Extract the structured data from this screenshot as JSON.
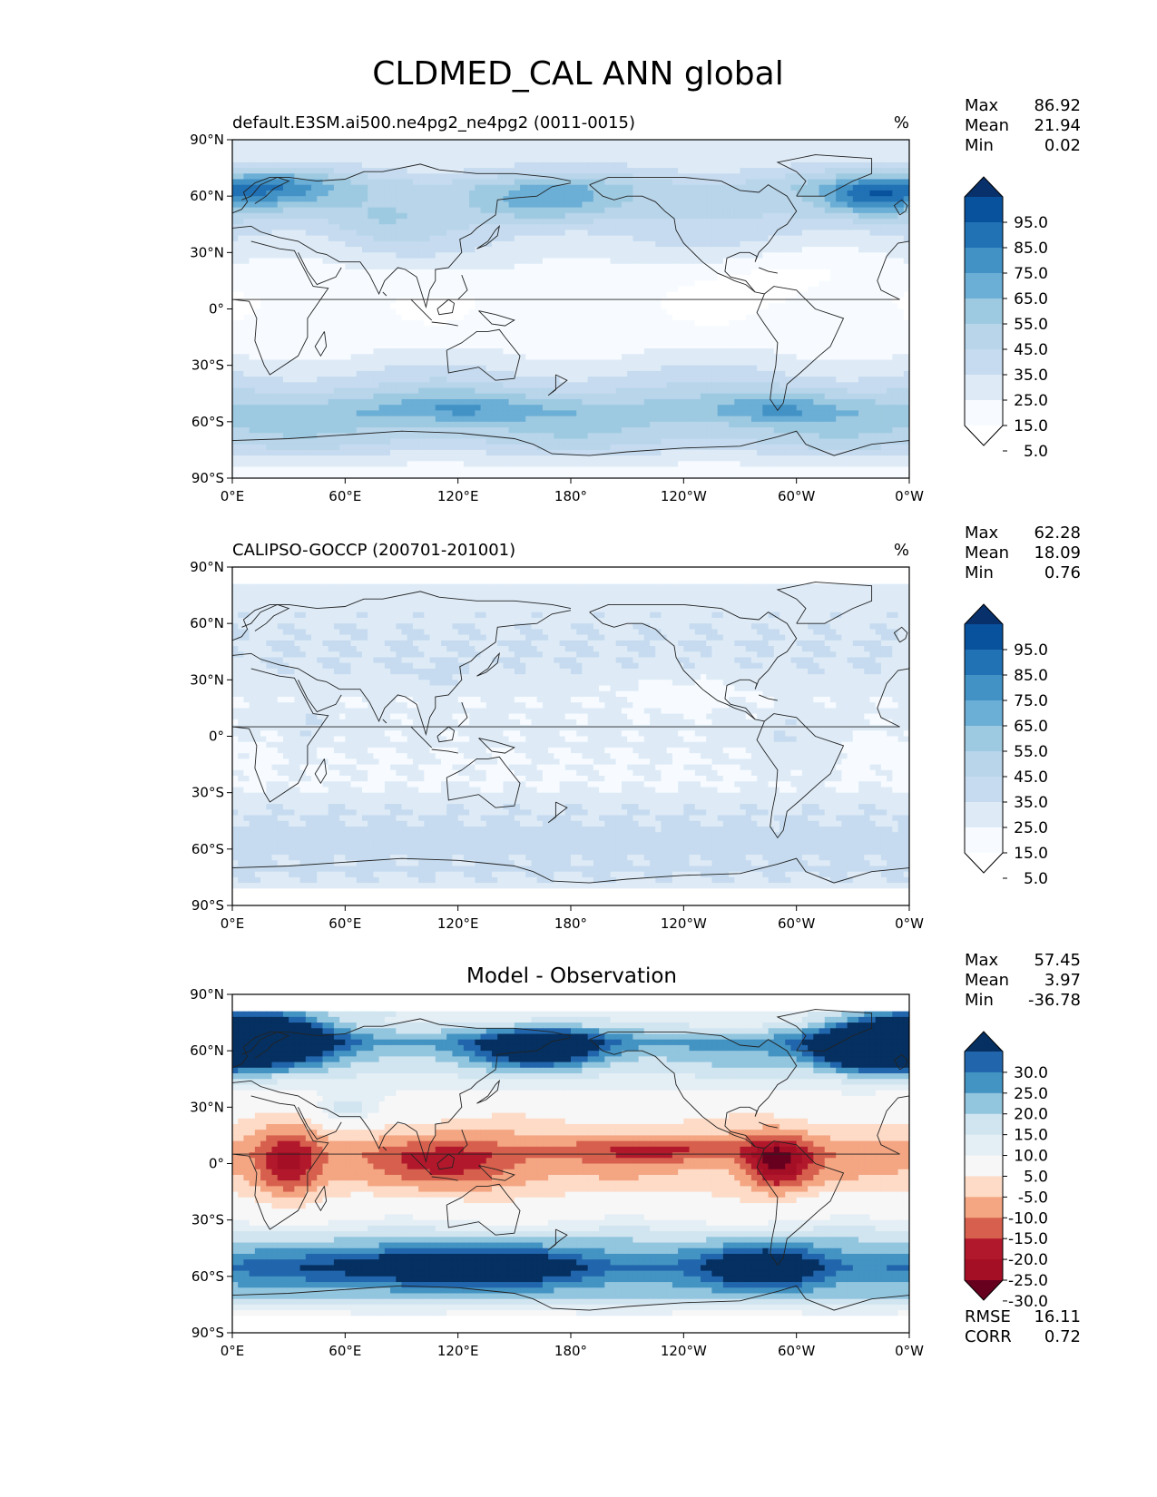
{
  "figure": {
    "title": "CLDMED_CAL ANN global"
  },
  "panels": [
    {
      "id": "test",
      "title_left": "default.E3SM.ai500.ne4pg2_ne4pg2 (0011-0015)",
      "title_center": "",
      "units": "%",
      "stats": [
        {
          "label": "Max",
          "value": "86.92"
        },
        {
          "label": "Mean",
          "value": "21.94"
        },
        {
          "label": "Min",
          "value": "0.02"
        }
      ],
      "extra_stats": [],
      "colorbar": {
        "labels": [
          "95.0",
          "85.0",
          "75.0",
          "65.0",
          "55.0",
          "45.0",
          "35.0",
          "25.0",
          "15.0",
          "5.0"
        ],
        "colors": [
          "#08306b",
          "#08519c",
          "#2171b5",
          "#4292c6",
          "#6baed6",
          "#9ecae1",
          "#b8d5ea",
          "#c6dbef",
          "#deebf7",
          "#f7fbff",
          "#ffffff"
        ]
      }
    },
    {
      "id": "reference",
      "title_left": "CALIPSO-GOCCP (200701-201001)",
      "title_center": "",
      "units": "%",
      "stats": [
        {
          "label": "Max",
          "value": "62.28"
        },
        {
          "label": "Mean",
          "value": "18.09"
        },
        {
          "label": "Min",
          "value": "0.76"
        }
      ],
      "extra_stats": [],
      "colorbar": {
        "labels": [
          "95.0",
          "85.0",
          "75.0",
          "65.0",
          "55.0",
          "45.0",
          "35.0",
          "25.0",
          "15.0",
          "5.0"
        ],
        "colors": [
          "#08306b",
          "#08519c",
          "#2171b5",
          "#4292c6",
          "#6baed6",
          "#9ecae1",
          "#b8d5ea",
          "#c6dbef",
          "#deebf7",
          "#f7fbff",
          "#ffffff"
        ]
      }
    },
    {
      "id": "difference",
      "title_left": "",
      "title_center": "Model - Observation",
      "units": "",
      "stats": [
        {
          "label": "Max",
          "value": "57.45"
        },
        {
          "label": "Mean",
          "value": "3.97"
        },
        {
          "label": "Min",
          "value": "-36.78"
        }
      ],
      "extra_stats": [
        {
          "label": "RMSE",
          "value": "16.11"
        },
        {
          "label": "CORR",
          "value": "0.72"
        }
      ],
      "colorbar": {
        "labels": [
          "30.0",
          "25.0",
          "20.0",
          "15.0",
          "10.0",
          "5.0",
          "-5.0",
          "-10.0",
          "-15.0",
          "-20.0",
          "-25.0",
          "-30.0"
        ],
        "colors": [
          "#053061",
          "#2166ac",
          "#4393c3",
          "#92c5de",
          "#d1e5f0",
          "#e4eef5",
          "#f7f7f7",
          "#fddbc7",
          "#f4a582",
          "#d6604d",
          "#b2182b",
          "#a50f26",
          "#67001f"
        ]
      }
    }
  ],
  "axes": {
    "x_ticks": [
      "0°E",
      "60°E",
      "120°E",
      "180°",
      "120°W",
      "60°W",
      "0°W"
    ],
    "y_ticks": [
      "90°N",
      "60°N",
      "30°N",
      "0°",
      "30°S",
      "60°S",
      "90°S"
    ]
  },
  "chart_data": [
    {
      "type": "heatmap",
      "projection": "plate-carree",
      "title": "default.E3SM.ai500.ne4pg2_ne4pg2 (0011-0015)",
      "units": "%",
      "xlim": [
        0,
        360
      ],
      "ylim": [
        -90,
        90
      ],
      "levels": [
        5,
        15,
        25,
        35,
        45,
        55,
        65,
        75,
        85,
        95
      ],
      "stats": {
        "max": 86.92,
        "mean": 21.94,
        "min": 0.02
      },
      "lat": [
        80,
        65,
        50,
        35,
        20,
        5,
        -10,
        -25,
        -40,
        -55,
        -70,
        -85
      ],
      "zonal_mean": [
        18,
        42,
        35,
        24,
        14,
        8,
        9,
        16,
        32,
        52,
        38,
        12
      ]
    },
    {
      "type": "heatmap",
      "projection": "plate-carree",
      "title": "CALIPSO-GOCCP (200701-201001)",
      "units": "%",
      "xlim": [
        0,
        360
      ],
      "ylim": [
        -90,
        90
      ],
      "levels": [
        5,
        15,
        25,
        35,
        45,
        55,
        65,
        75,
        85,
        95
      ],
      "stats": {
        "max": 62.28,
        "mean": 18.09,
        "min": 0.76
      },
      "lat": [
        75,
        65,
        50,
        35,
        20,
        5,
        -10,
        -25,
        -40,
        -55,
        -70,
        -80
      ],
      "zonal_mean": [
        20,
        22,
        25,
        24,
        16,
        18,
        15,
        14,
        24,
        30,
        26,
        22
      ]
    },
    {
      "type": "heatmap",
      "projection": "plate-carree",
      "title": "Model - Observation",
      "xlim": [
        0,
        360
      ],
      "ylim": [
        -90,
        90
      ],
      "levels": [
        -30,
        -25,
        -20,
        -15,
        -10,
        -5,
        5,
        10,
        15,
        20,
        25,
        30
      ],
      "stats": {
        "max": 57.45,
        "mean": 3.97,
        "min": -36.78,
        "rmse": 16.11,
        "corr": 0.72
      },
      "lat": [
        75,
        65,
        50,
        35,
        20,
        5,
        -10,
        -25,
        -40,
        -55,
        -70,
        -80
      ],
      "zonal_mean": [
        8,
        22,
        12,
        2,
        -6,
        -12,
        -8,
        0,
        14,
        26,
        16,
        4
      ]
    }
  ]
}
